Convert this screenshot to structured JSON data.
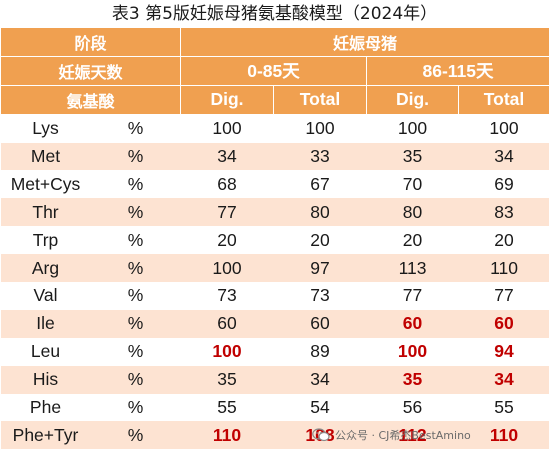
{
  "title": "表3 第5版妊娠母猪氨基酸模型（2024年）",
  "header": {
    "stage_label": "阶段",
    "stage_value": "妊娠母猪",
    "days_label": "妊娠天数",
    "period1": "0-85天",
    "period2": "86-115天",
    "aa_label": "氨基酸",
    "col_dig": "Dig.",
    "col_total": "Total"
  },
  "rows": [
    {
      "aa": "Lys",
      "unit": "%",
      "v": [
        "100",
        "100",
        "100",
        "100"
      ]
    },
    {
      "aa": "Met",
      "unit": "%",
      "v": [
        "34",
        "33",
        "35",
        "34"
      ]
    },
    {
      "aa": "Met+Cys",
      "unit": "%",
      "v": [
        "68",
        "67",
        "70",
        "69"
      ]
    },
    {
      "aa": "Thr",
      "unit": "%",
      "v": [
        "77",
        "80",
        "80",
        "83"
      ]
    },
    {
      "aa": "Trp",
      "unit": "%",
      "v": [
        "20",
        "20",
        "20",
        "20"
      ]
    },
    {
      "aa": "Arg",
      "unit": "%",
      "v": [
        "100",
        "97",
        "113",
        "110"
      ]
    },
    {
      "aa": "Val",
      "unit": "%",
      "v": [
        "73",
        "73",
        "77",
        "77"
      ]
    },
    {
      "aa": "Ile",
      "unit": "%",
      "v": [
        "60",
        "60",
        "60",
        "60"
      ]
    },
    {
      "aa": "Leu",
      "unit": "%",
      "v": [
        "100",
        "89",
        "100",
        "94"
      ]
    },
    {
      "aa": "His",
      "unit": "%",
      "v": [
        "35",
        "34",
        "35",
        "34"
      ]
    },
    {
      "aa": "Phe",
      "unit": "%",
      "v": [
        "55",
        "54",
        "56",
        "55"
      ]
    },
    {
      "aa": "Phe+Tyr",
      "unit": "%",
      "v": [
        "110",
        "108",
        "112",
        "110"
      ]
    }
  ],
  "highlight_color": "#c00000",
  "header_color": "#f0a050",
  "stripe_color": "#fde3d2",
  "watermark": "公众号 · CJ希杰BestAmino",
  "watermark_icon": "wechat-icon"
}
